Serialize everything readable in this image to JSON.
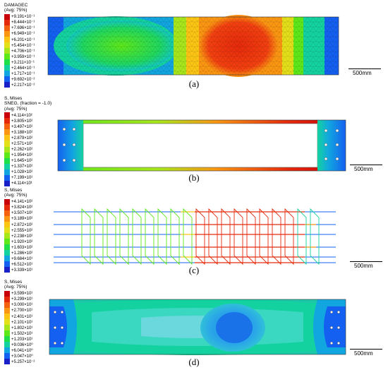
{
  "panels": [
    {
      "id": "a",
      "caption": "(a)",
      "legend": {
        "title_lines": [
          "DAMAGEC",
          "(Avg: 75%)"
        ],
        "values": [
          "+9.191×10⁻¹",
          "+8.444×10⁻¹",
          "+7.696×10⁻¹",
          "+6.949×10⁻¹",
          "+6.201×10⁻¹",
          "+5.454×10⁻¹",
          "+4.706×10⁻¹",
          "+3.959×10⁻¹",
          "+3.211×10⁻¹",
          "+2.464×10⁻¹",
          "+1.717×10⁻¹",
          "+9.692×10⁻²",
          "+2.217×10⁻²"
        ]
      },
      "scale_label": "500mm"
    },
    {
      "id": "b",
      "caption": "(b)",
      "legend": {
        "title_lines": [
          "S, Mises",
          "SNEG, (fraction = -1.0)",
          "(Avg: 75%)"
        ],
        "values": [
          "+4.114×10²",
          "+3.805×10²",
          "+3.497×10²",
          "+3.188×10²",
          "+2.879×10²",
          "+2.571×10²",
          "+2.262×10²",
          "+1.954×10²",
          "+1.645×10²",
          "+1.337×10²",
          "+1.028×10²",
          "+7.199×10¹",
          "+4.114×10¹"
        ]
      },
      "scale_label": "500mm"
    },
    {
      "id": "c",
      "caption": "(c)",
      "legend": {
        "title_lines": [
          "S, Mises",
          "(Avg: 75%)"
        ],
        "values": [
          "+4.141×10²",
          "+3.824×10²",
          "+3.507×10²",
          "+3.189×10²",
          "+2.872×10²",
          "+2.555×10²",
          "+2.238×10²",
          "+1.920×10²",
          "+1.603×10²",
          "+1.286×10²",
          "+9.684×10¹",
          "+6.512×10¹",
          "+3.339×10¹"
        ]
      },
      "scale_label": "500mm"
    },
    {
      "id": "d",
      "caption": "(d)",
      "legend": {
        "title_lines": [
          "S, Mises",
          "(Avg: 75%)"
        ],
        "values": [
          "+3.599×10¹",
          "+3.299×10¹",
          "+3.000×10¹",
          "+2.700×10¹",
          "+2.401×10¹",
          "+2.101×10¹",
          "+1.802×10¹",
          "+1.502×10¹",
          "+1.203×10¹",
          "+9.036×10⁰",
          "+6.041×10⁰",
          "+3.047×10⁰",
          "+5.257×10⁻²"
        ]
      },
      "scale_label": "500mm"
    }
  ],
  "palette": [
    "#c8000a",
    "#e52a0c",
    "#f5620f",
    "#fa9612",
    "#fcc514",
    "#e3e01a",
    "#a8e61c",
    "#5ee81a",
    "#20e04a",
    "#14d2a0",
    "#12a6e0",
    "#1460f0",
    "#1a20c8"
  ]
}
